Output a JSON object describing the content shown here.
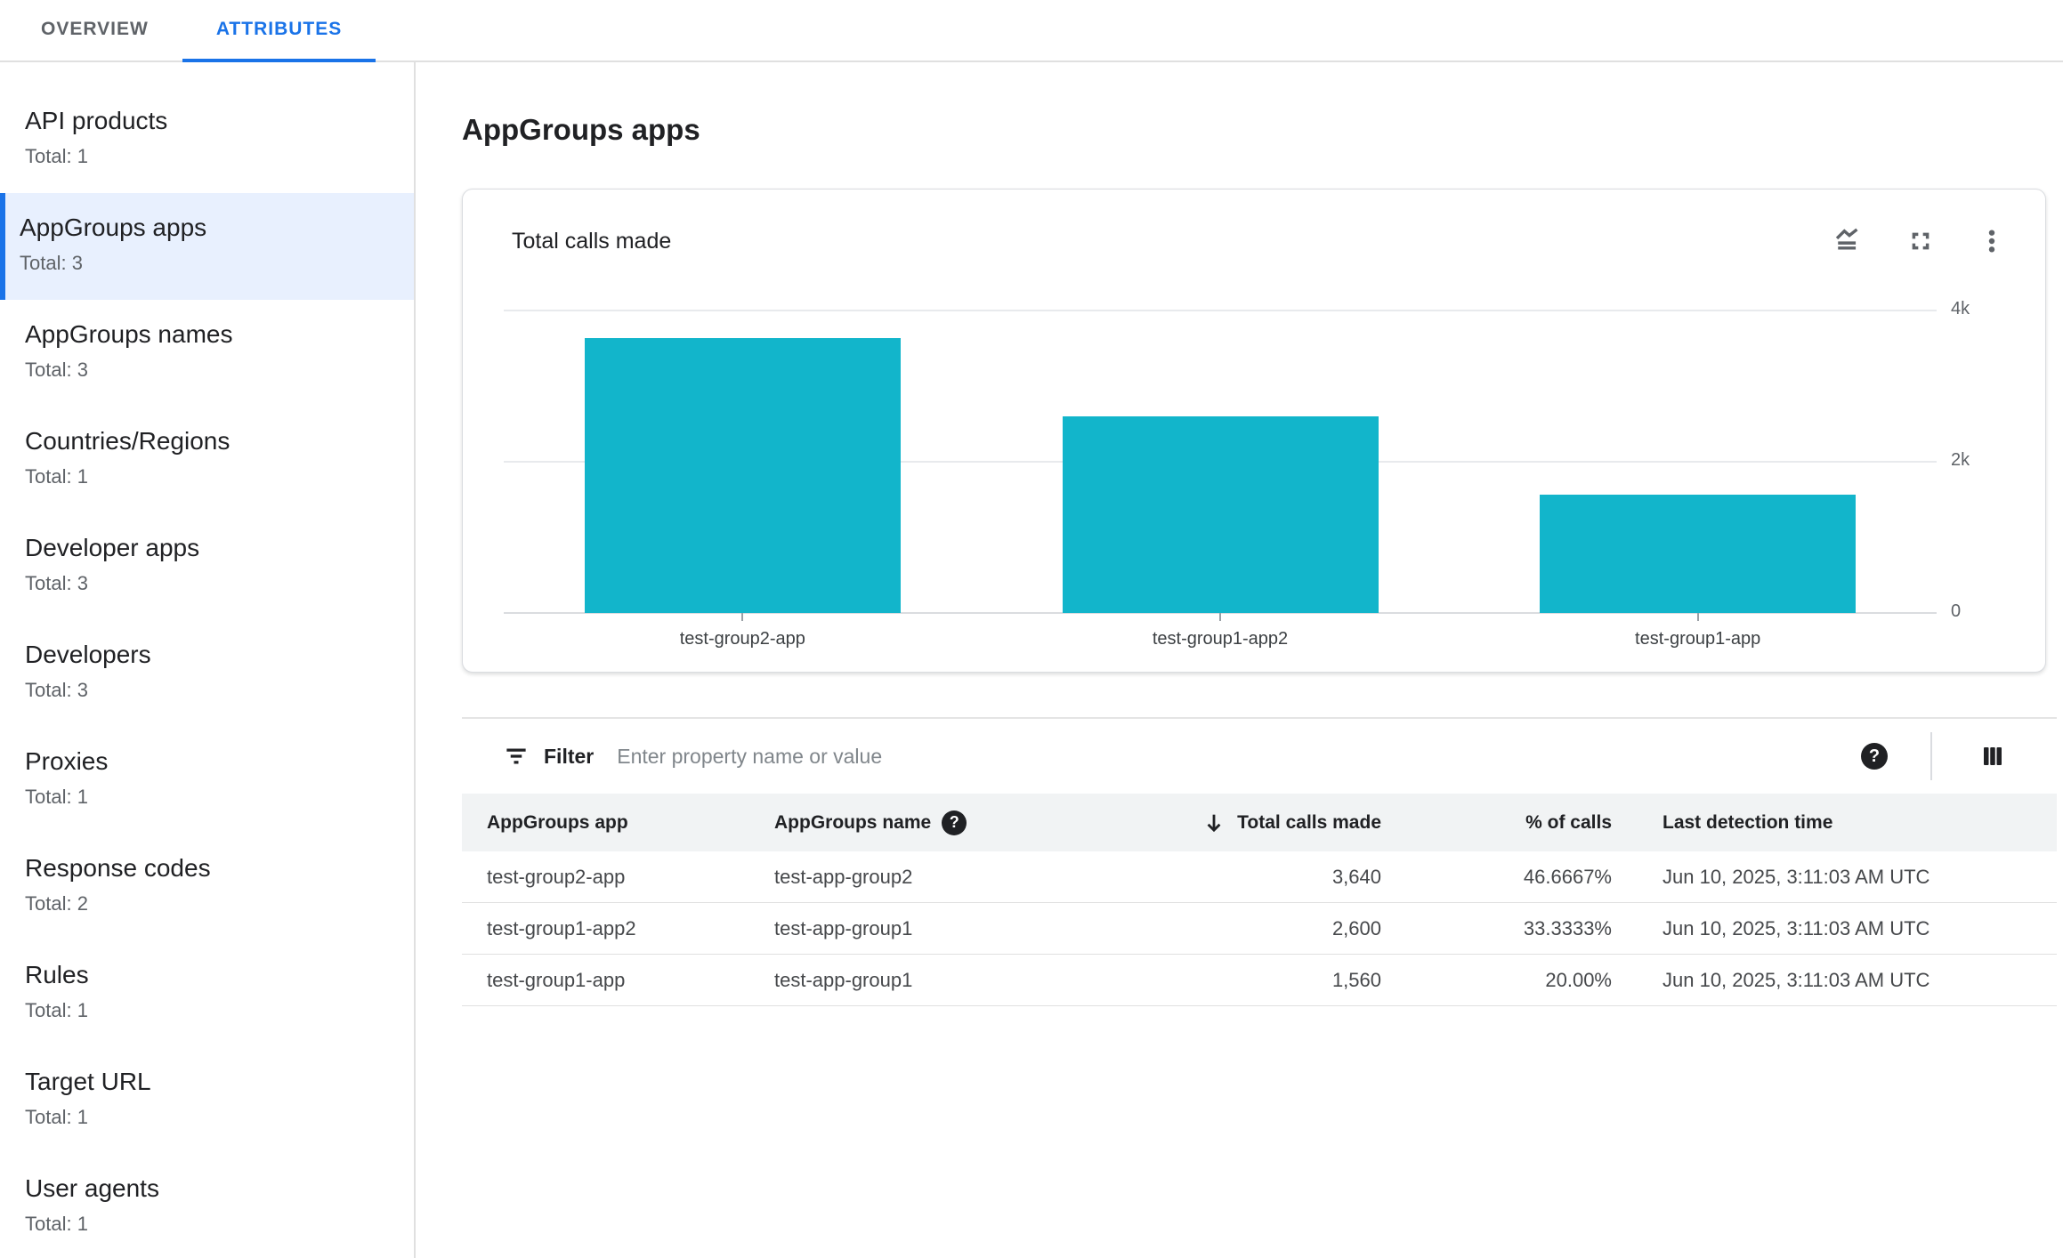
{
  "colors": {
    "accent_blue": "#1a73e8",
    "bar_teal": "#12b5cb",
    "selected_bg": "#e8f0fe",
    "table_header_bg": "#f1f3f4"
  },
  "tabs": [
    {
      "label": "OVERVIEW",
      "active": false
    },
    {
      "label": "ATTRIBUTES",
      "active": true
    }
  ],
  "sidebar": {
    "items": [
      {
        "label": "API products",
        "total": "Total: 1",
        "selected": false
      },
      {
        "label": "AppGroups apps",
        "total": "Total: 3",
        "selected": true
      },
      {
        "label": "AppGroups names",
        "total": "Total: 3",
        "selected": false
      },
      {
        "label": "Countries/Regions",
        "total": "Total: 1",
        "selected": false
      },
      {
        "label": "Developer apps",
        "total": "Total: 3",
        "selected": false
      },
      {
        "label": "Developers",
        "total": "Total: 3",
        "selected": false
      },
      {
        "label": "Proxies",
        "total": "Total: 1",
        "selected": false
      },
      {
        "label": "Response codes",
        "total": "Total: 2",
        "selected": false
      },
      {
        "label": "Rules",
        "total": "Total: 1",
        "selected": false
      },
      {
        "label": "Target URL",
        "total": "Total: 1",
        "selected": false
      },
      {
        "label": "User agents",
        "total": "Total: 1",
        "selected": false
      }
    ]
  },
  "main": {
    "page_title": "AppGroups apps",
    "card": {
      "title": "Total calls made",
      "icons": [
        "stacked-line-chart-icon",
        "fullscreen-icon",
        "more-vert-icon"
      ]
    },
    "filter": {
      "label": "Filter",
      "placeholder": "Enter property name or value",
      "value": ""
    },
    "table": {
      "columns": [
        {
          "label": "AppGroups app",
          "align": "left"
        },
        {
          "label": "AppGroups name",
          "align": "left",
          "help_icon": true
        },
        {
          "label": "Total calls made",
          "align": "right",
          "sorted": "desc"
        },
        {
          "label": "% of calls",
          "align": "right"
        },
        {
          "label": "Last detection time",
          "align": "left",
          "pad_left": true
        }
      ],
      "rows": [
        [
          "test-group2-app",
          "test-app-group2",
          "3,640",
          "46.6667%",
          "Jun 10, 2025, 3:11:03 AM UTC"
        ],
        [
          "test-group1-app2",
          "test-app-group1",
          "2,600",
          "33.3333%",
          "Jun 10, 2025, 3:11:03 AM UTC"
        ],
        [
          "test-group1-app",
          "test-app-group1",
          "1,560",
          "20.00%",
          "Jun 10, 2025, 3:11:03 AM UTC"
        ]
      ]
    }
  },
  "chart_data": {
    "type": "bar",
    "title": "Total calls made",
    "categories": [
      "test-group2-app",
      "test-group1-app2",
      "test-group1-app"
    ],
    "values": [
      3640,
      2600,
      1560
    ],
    "xlabel": "",
    "ylabel": "",
    "ylim": [
      0,
      4000
    ],
    "yticks": [
      {
        "value": 4000,
        "label": "4k"
      },
      {
        "value": 2000,
        "label": "2k"
      },
      {
        "value": 0,
        "label": "0"
      }
    ],
    "bar_color": "#12b5cb",
    "grid": true,
    "y_axis_side": "right",
    "legend": "none"
  }
}
